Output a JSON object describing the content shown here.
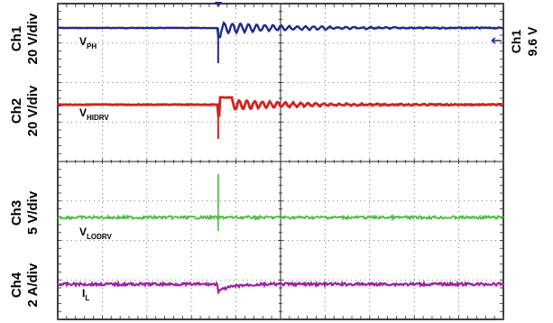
{
  "chart_data": {
    "type": "line",
    "channels": [
      {
        "id": "ch1",
        "name": "Ch1",
        "scale": "20 V/div",
        "signal_main": "V",
        "signal_sub": "PH",
        "color": "#1f2a8c"
      },
      {
        "id": "ch2",
        "name": "Ch2",
        "scale": "20 V/div",
        "signal_main": "V",
        "signal_sub": "HIDRV",
        "color": "#d42020"
      },
      {
        "id": "ch3",
        "name": "Ch3",
        "scale": "5 V/div",
        "signal_main": "V",
        "signal_sub": "LODRV",
        "color": "#4dbb45"
      },
      {
        "id": "ch4",
        "name": "Ch4",
        "scale": "2 A/div",
        "signal_main": "I",
        "signal_sub": "L",
        "color": "#a020a8"
      }
    ],
    "trigger": {
      "channel": "Ch1",
      "level": "9.6 V"
    },
    "grid": {
      "divisions_x": 10,
      "divisions_y": 8
    },
    "event_time_div": 3.6
  }
}
